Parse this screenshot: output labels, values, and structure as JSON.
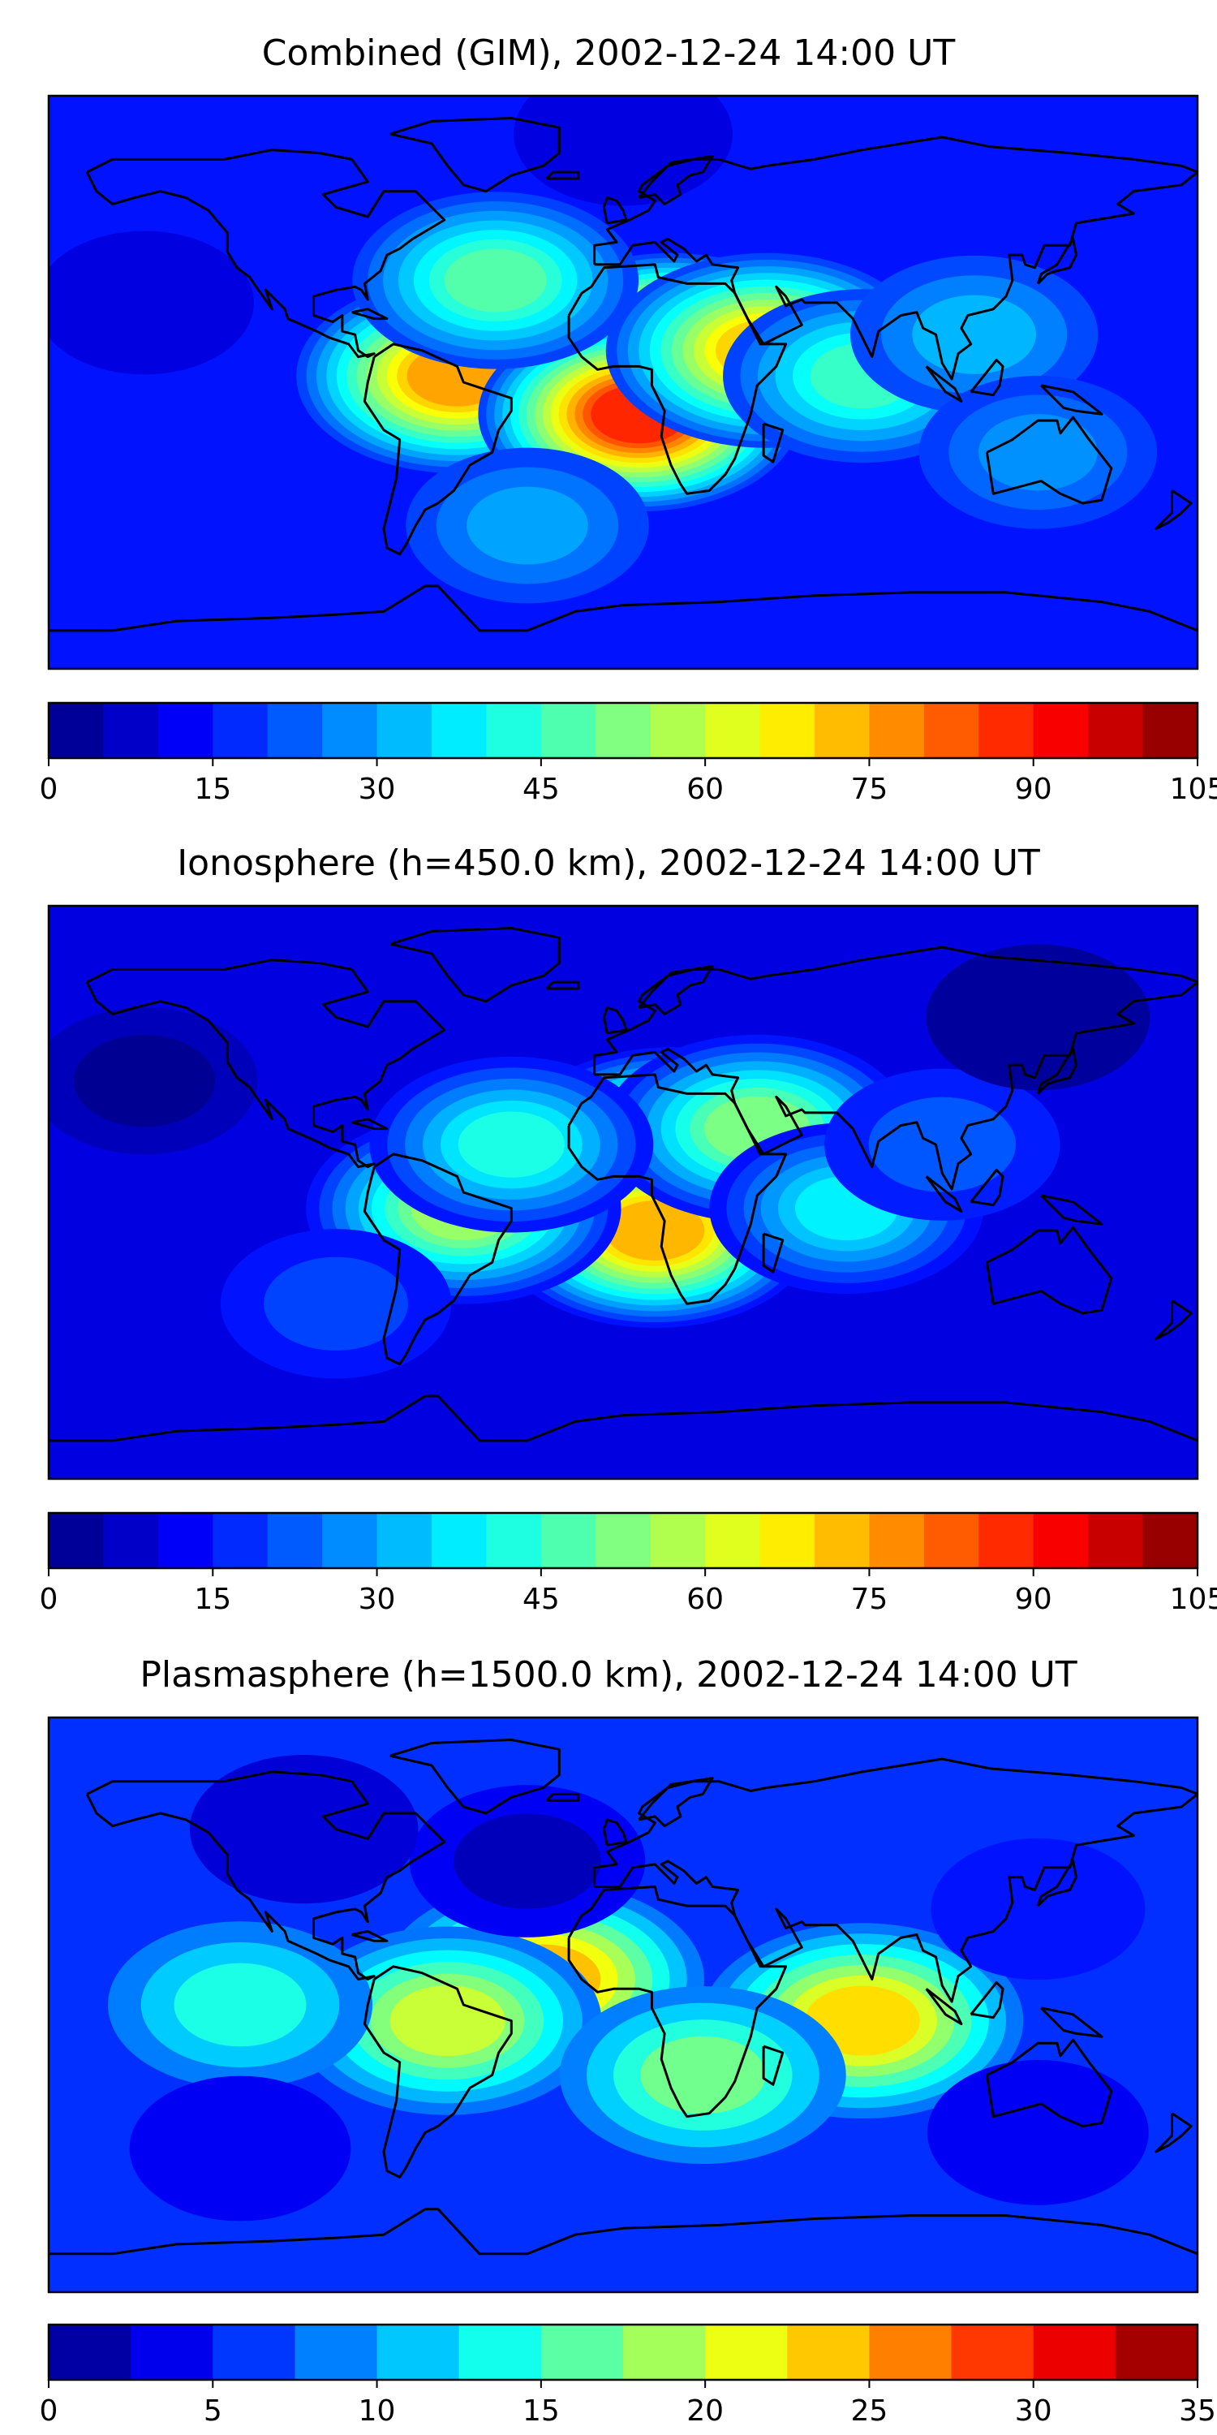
{
  "figure": {
    "type": "contour-map-panels",
    "background": "#ffffff",
    "colormap": "jet",
    "coastline_color": "#000000"
  },
  "chart_data": [
    {
      "type": "heatmap",
      "title": "Combined (GIM), 2002-12-24 14:00 UT",
      "colorbar": {
        "min": 0,
        "max": 105,
        "levels": 21,
        "ticks": [
          0,
          15,
          30,
          45,
          60,
          75,
          90,
          105
        ]
      },
      "background_level": 15,
      "features": [
        {
          "name": "africa-equatorial-maximum",
          "lon": 15,
          "lat": 10,
          "value": 90
        },
        {
          "name": "south-america-crest",
          "lon": -52,
          "lat": 2,
          "value": 75
        },
        {
          "name": "south-atlantic-crest",
          "lon": 5,
          "lat": -10,
          "value": 88
        },
        {
          "name": "east-africa-arabia-band",
          "lon": 45,
          "lat": 10,
          "value": 70
        },
        {
          "name": "indian-ocean-tongue",
          "lon": 75,
          "lat": 2,
          "value": 45
        },
        {
          "name": "southeast-asia-band",
          "lon": 110,
          "lat": 15,
          "value": 32
        },
        {
          "name": "australia",
          "lon": 130,
          "lat": -22,
          "value": 28
        },
        {
          "name": "mid-atlantic-north",
          "lon": -40,
          "lat": 32,
          "value": 48
        },
        {
          "name": "southern-ocean",
          "lon": -30,
          "lat": -45,
          "value": 30
        },
        {
          "name": "pacific-low",
          "lon": -150,
          "lat": 25,
          "value": 10
        },
        {
          "name": "arctic-low",
          "lon": 0,
          "lat": 78,
          "value": 10
        }
      ]
    },
    {
      "type": "heatmap",
      "title": "Ionosphere  (h=450.0 km), 2002-12-24 14:00 UT",
      "colorbar": {
        "min": 0,
        "max": 105,
        "levels": 21,
        "ticks": [
          0,
          15,
          30,
          45,
          60,
          75,
          90,
          105
        ]
      },
      "background_level": 10,
      "features": [
        {
          "name": "africa-north-crest",
          "lon": 15,
          "lat": 15,
          "value": 68
        },
        {
          "name": "africa-south-crest",
          "lon": 10,
          "lat": -12,
          "value": 73
        },
        {
          "name": "brazil",
          "lon": -50,
          "lat": -5,
          "value": 55
        },
        {
          "name": "arabia",
          "lon": 42,
          "lat": 20,
          "value": 52
        },
        {
          "name": "indian-ocean",
          "lon": 70,
          "lat": -5,
          "value": 38
        },
        {
          "name": "mid-atlantic",
          "lon": -35,
          "lat": 15,
          "value": 42
        },
        {
          "name": "southeast-asia",
          "lon": 100,
          "lat": 15,
          "value": 22
        },
        {
          "name": "south-pacific",
          "lon": -90,
          "lat": -35,
          "value": 20
        },
        {
          "name": "pacific-low",
          "lon": -150,
          "lat": 35,
          "value": 2
        },
        {
          "name": "asia-low",
          "lon": 130,
          "lat": 55,
          "value": 3
        }
      ]
    },
    {
      "type": "heatmap",
      "title": "Plasmasphere (h=1500.0 km), 2002-12-24 14:00 UT",
      "colorbar": {
        "min": 0,
        "max": 35,
        "levels": 14,
        "ticks": [
          0,
          5,
          10,
          15,
          20,
          25,
          30,
          35
        ]
      },
      "background_level": 6,
      "features": [
        {
          "name": "south-atlantic-max",
          "lon": -25,
          "lat": 8,
          "value": 24
        },
        {
          "name": "indian-ocean-max",
          "lon": 75,
          "lat": -5,
          "value": 23
        },
        {
          "name": "brazil",
          "lon": -55,
          "lat": -5,
          "value": 20
        },
        {
          "name": "southern-africa",
          "lon": 25,
          "lat": -22,
          "value": 17
        },
        {
          "name": "tropical-band",
          "lon": -120,
          "lat": 0,
          "value": 14
        },
        {
          "name": "north-atlantic-low",
          "lon": -30,
          "lat": 45,
          "value": 2
        },
        {
          "name": "north-america-low",
          "lon": -100,
          "lat": 55,
          "value": 3
        },
        {
          "name": "japan-low",
          "lon": 130,
          "lat": 30,
          "value": 5
        },
        {
          "name": "southern-low",
          "lon": 130,
          "lat": -40,
          "value": 4
        },
        {
          "name": "far-south-low",
          "lon": -120,
          "lat": -45,
          "value": 4
        }
      ]
    }
  ]
}
